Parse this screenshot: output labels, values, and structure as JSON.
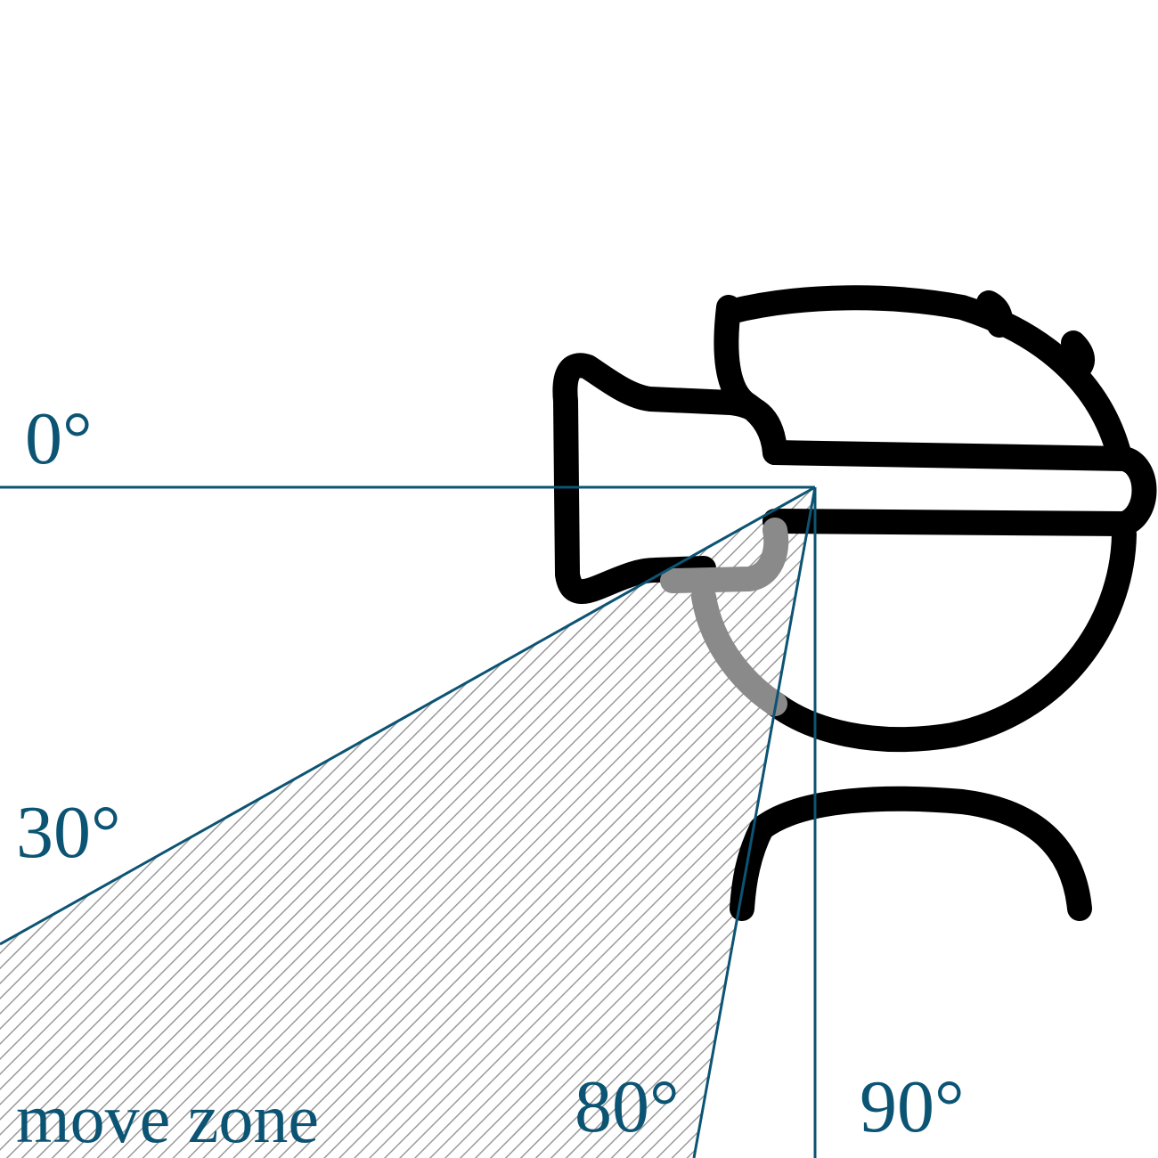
{
  "labels": {
    "angle_0": "0°",
    "angle_30": "30°",
    "angle_80": "80°",
    "angle_90": "90°",
    "zone": "move zone"
  },
  "colors": {
    "lines": "#0c5473",
    "text": "#0c5473",
    "outline": "#000000",
    "hatch": "#9a9a9a"
  },
  "icons": {
    "figure": "vr-headset-user-icon"
  }
}
